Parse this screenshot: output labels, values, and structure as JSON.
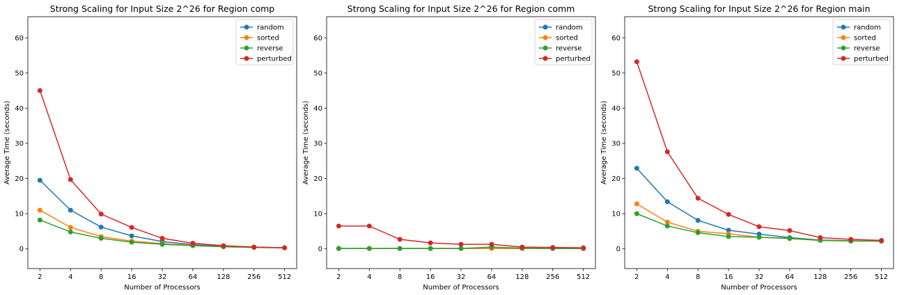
{
  "chart_data": [
    {
      "type": "line",
      "title": "Strong Scaling for Input Size 2^26 for Region comp",
      "xlabel": "Number of Processors",
      "ylabel": "Average Time (seconds)",
      "categories": [
        "2",
        "4",
        "8",
        "16",
        "32",
        "64",
        "128",
        "256",
        "512"
      ],
      "ylim": [
        -5.6,
        66
      ],
      "yticks": [
        0,
        10,
        20,
        30,
        40,
        50,
        60
      ],
      "legend_position": "top-right",
      "grid": false,
      "series": [
        {
          "name": "random",
          "color": "#1f77b4",
          "values": [
            19.5,
            11.0,
            6.2,
            3.7,
            2.1,
            1.2,
            0.8,
            0.5,
            0.3
          ]
        },
        {
          "name": "sorted",
          "color": "#ff7f0e",
          "values": [
            11.0,
            6.1,
            3.5,
            2.2,
            1.5,
            1.0,
            0.6,
            0.4,
            0.3
          ]
        },
        {
          "name": "reverse",
          "color": "#2ca02c",
          "values": [
            8.2,
            4.8,
            3.0,
            1.9,
            1.3,
            0.9,
            0.6,
            0.4,
            0.3
          ]
        },
        {
          "name": "perturbed",
          "color": "#d62728",
          "values": [
            45.0,
            19.7,
            9.9,
            6.1,
            3.0,
            1.6,
            0.9,
            0.5,
            0.3
          ]
        }
      ]
    },
    {
      "type": "line",
      "title": "Strong Scaling for Input Size 2^26 for Region comm",
      "xlabel": "Number of Processors",
      "ylabel": "Average Time (seconds)",
      "categories": [
        "2",
        "4",
        "8",
        "16",
        "32",
        "64",
        "128",
        "256",
        "512"
      ],
      "ylim": [
        -5.6,
        66
      ],
      "yticks": [
        0,
        10,
        20,
        30,
        40,
        50,
        60
      ],
      "legend_position": "top-right",
      "grid": false,
      "series": [
        {
          "name": "random",
          "color": "#1f77b4",
          "values": [
            0.1,
            0.1,
            0.1,
            0.1,
            0.1,
            0.1,
            0.1,
            0.1,
            0.1
          ]
        },
        {
          "name": "sorted",
          "color": "#ff7f0e",
          "values": [
            0.1,
            0.1,
            0.1,
            0.1,
            0.1,
            0.1,
            0.1,
            0.1,
            0.1
          ]
        },
        {
          "name": "reverse",
          "color": "#2ca02c",
          "values": [
            0.1,
            0.1,
            0.1,
            0.1,
            0.1,
            0.5,
            0.2,
            0.1,
            0.1
          ]
        },
        {
          "name": "perturbed",
          "color": "#d62728",
          "values": [
            6.5,
            6.5,
            2.7,
            1.7,
            1.3,
            1.3,
            0.5,
            0.4,
            0.3
          ]
        }
      ]
    },
    {
      "type": "line",
      "title": "Strong Scaling for Input Size 2^26 for Region main",
      "xlabel": "Number of Processors",
      "ylabel": "Average Time (seconds)",
      "categories": [
        "2",
        "4",
        "8",
        "16",
        "32",
        "64",
        "128",
        "256",
        "512"
      ],
      "ylim": [
        -5.6,
        66
      ],
      "yticks": [
        0,
        10,
        20,
        30,
        40,
        50,
        60
      ],
      "legend_position": "top-right",
      "grid": false,
      "series": [
        {
          "name": "random",
          "color": "#1f77b4",
          "values": [
            22.9,
            13.4,
            8.1,
            5.3,
            4.2,
            3.2,
            2.5,
            2.3,
            2.2
          ]
        },
        {
          "name": "sorted",
          "color": "#ff7f0e",
          "values": [
            12.8,
            7.6,
            5.0,
            4.3,
            3.3,
            2.9,
            2.4,
            2.3,
            2.2
          ]
        },
        {
          "name": "reverse",
          "color": "#2ca02c",
          "values": [
            10.0,
            6.5,
            4.6,
            3.5,
            3.3,
            3.0,
            2.4,
            2.2,
            2.2
          ]
        },
        {
          "name": "perturbed",
          "color": "#d62728",
          "values": [
            53.2,
            27.6,
            14.4,
            9.8,
            6.3,
            5.2,
            3.2,
            2.7,
            2.4
          ]
        }
      ]
    }
  ]
}
